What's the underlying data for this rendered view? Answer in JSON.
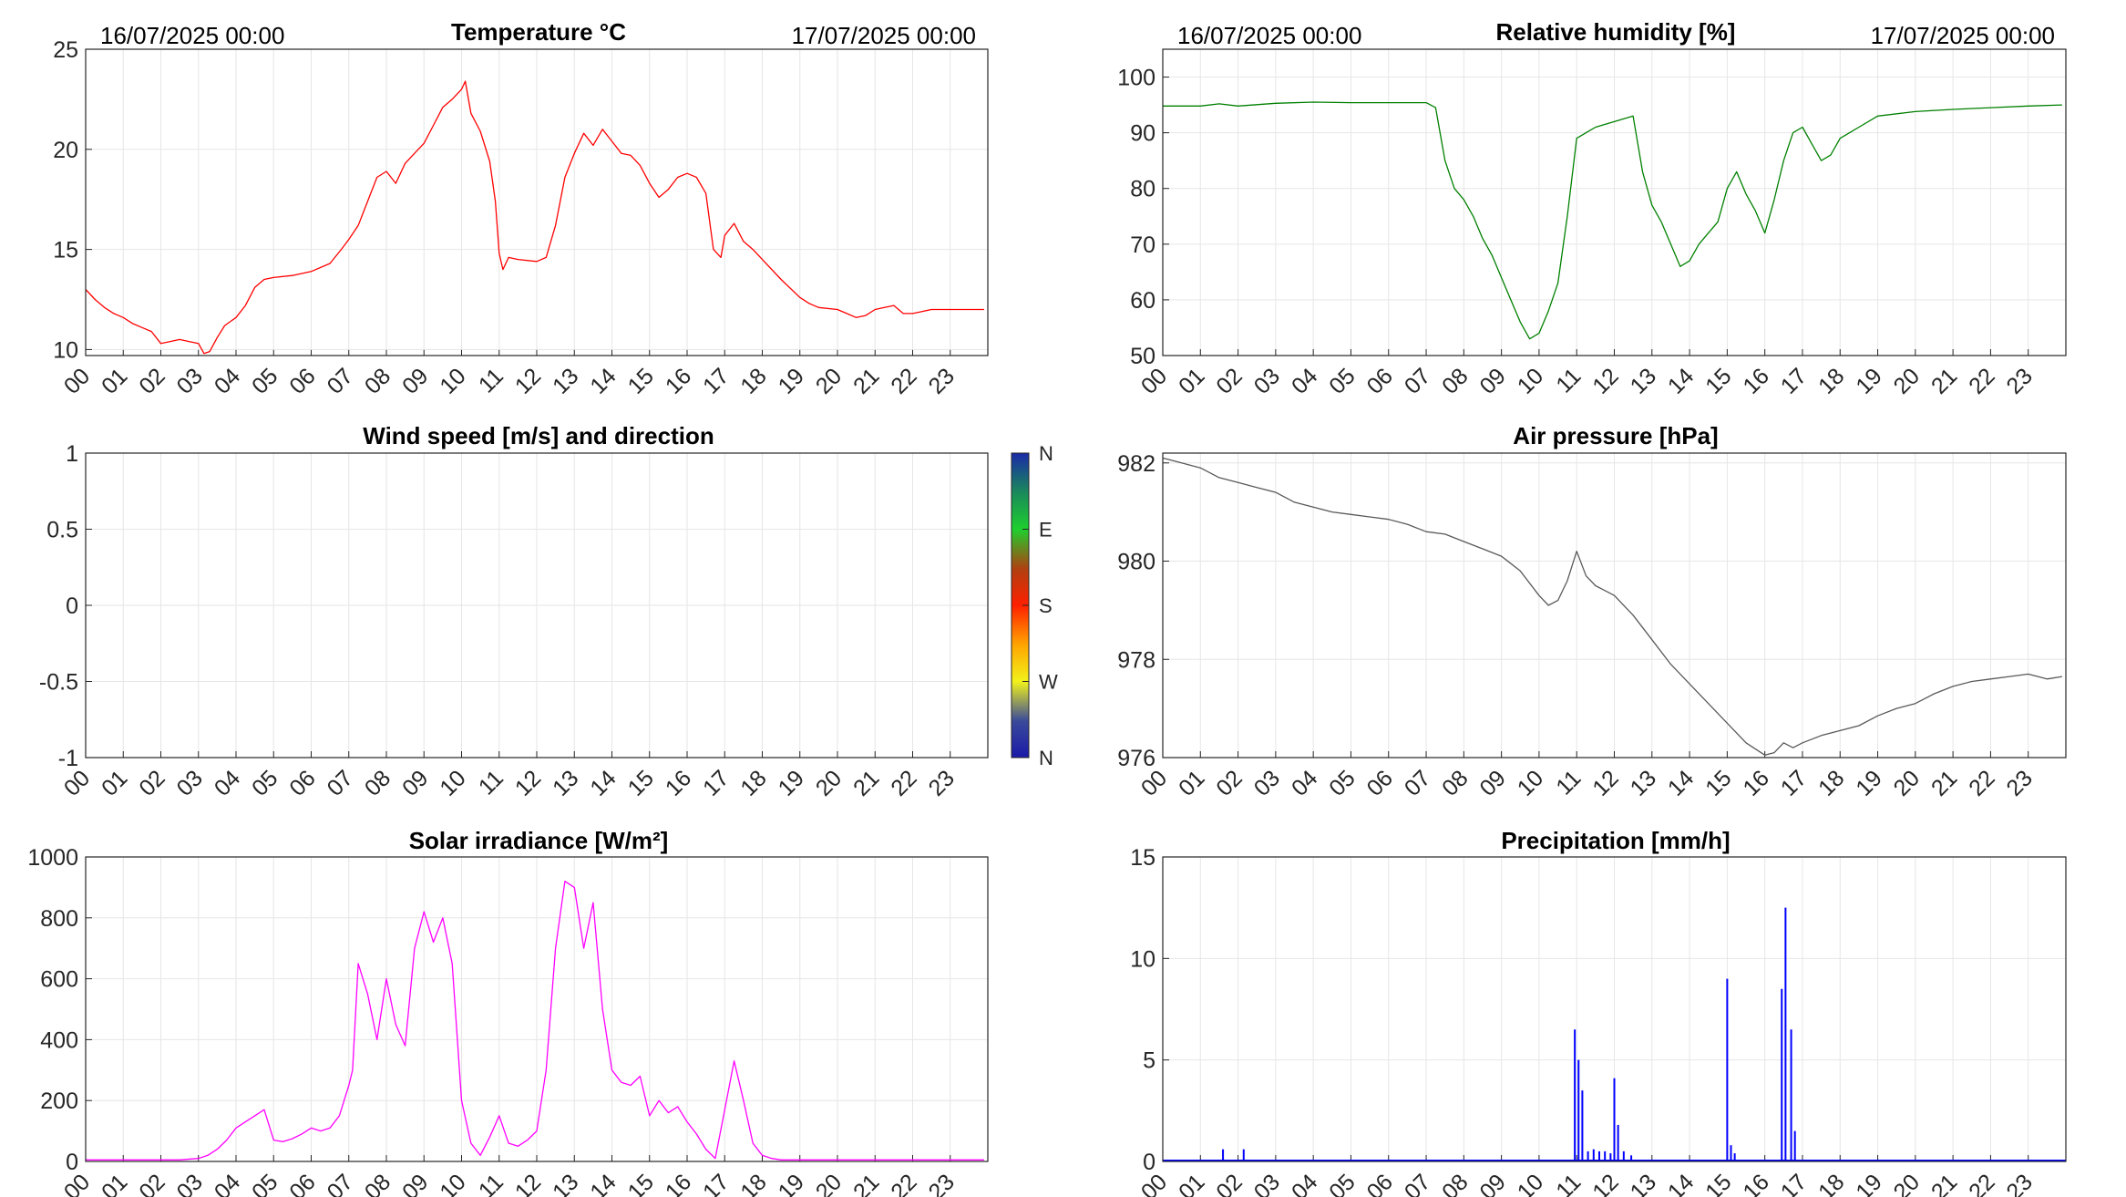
{
  "colors": {
    "temperature": "#ff0000",
    "humidity": "#008000",
    "pressure": "#595959",
    "solar": "#ff00ff",
    "precip": "#0000ff",
    "grid": "#e6e6e6",
    "axis": "#262626"
  },
  "hour_labels": [
    "00",
    "01",
    "02",
    "03",
    "04",
    "05",
    "06",
    "07",
    "08",
    "09",
    "10",
    "11",
    "12",
    "13",
    "14",
    "15",
    "16",
    "17",
    "18",
    "19",
    "20",
    "21",
    "22",
    "23"
  ],
  "date_start": "16/07/2025 00:00",
  "date_end": "17/07/2025 00:00",
  "colorbar_labels": [
    "N",
    "W",
    "S",
    "E",
    "N"
  ],
  "colorbar_label_keys": [
    "N",
    "W",
    "S",
    "E",
    "N2"
  ],
  "chart_data": [
    {
      "id": "temperature",
      "type": "line",
      "title": "Temperature °C",
      "ylim": [
        9.7,
        25
      ],
      "yticks": [
        10,
        15,
        20,
        25
      ],
      "grid": true,
      "x_unit": "hour of day",
      "x": [
        0,
        0.25,
        0.5,
        0.75,
        1,
        1.25,
        1.5,
        1.75,
        2,
        2.25,
        2.5,
        2.75,
        3,
        3.15,
        3.3,
        3.5,
        3.7,
        4,
        4.25,
        4.5,
        4.75,
        5,
        5.5,
        6,
        6.5,
        6.8,
        7,
        7.25,
        7.5,
        7.75,
        8,
        8.25,
        8.5,
        8.75,
        9,
        9.25,
        9.5,
        9.75,
        10,
        10.1,
        10.25,
        10.5,
        10.75,
        10.9,
        11,
        11.1,
        11.25,
        11.5,
        12,
        12.25,
        12.5,
        12.75,
        13,
        13.25,
        13.5,
        13.75,
        14,
        14.25,
        14.5,
        14.75,
        15,
        15.25,
        15.5,
        15.75,
        16,
        16.25,
        16.5,
        16.7,
        16.9,
        17,
        17.25,
        17.5,
        17.75,
        18,
        18.5,
        19,
        19.25,
        19.5,
        20,
        20.25,
        20.5,
        20.75,
        21,
        21.25,
        21.5,
        21.75,
        22,
        22.25,
        22.5,
        23,
        23.5,
        23.9
      ],
      "y": [
        13.0,
        12.5,
        12.1,
        11.8,
        11.6,
        11.3,
        11.1,
        10.9,
        10.3,
        10.4,
        10.5,
        10.4,
        10.3,
        9.8,
        9.9,
        10.6,
        11.2,
        11.6,
        12.2,
        13.1,
        13.5,
        13.6,
        13.7,
        13.9,
        14.3,
        15.0,
        15.5,
        16.2,
        17.4,
        18.6,
        18.9,
        18.3,
        19.3,
        19.8,
        20.3,
        21.2,
        22.1,
        22.5,
        23.0,
        23.4,
        21.8,
        20.9,
        19.4,
        17.4,
        14.8,
        14.0,
        14.6,
        14.5,
        14.4,
        14.6,
        16.2,
        18.6,
        19.8,
        20.8,
        20.2,
        21.0,
        20.4,
        19.8,
        19.7,
        19.2,
        18.3,
        17.6,
        18.0,
        18.6,
        18.8,
        18.6,
        17.8,
        15.0,
        14.6,
        15.7,
        16.3,
        15.4,
        15.0,
        14.5,
        13.5,
        12.6,
        12.3,
        12.1,
        12.0,
        11.8,
        11.6,
        11.7,
        12.0,
        12.1,
        12.2,
        11.8,
        11.8,
        11.9,
        12.0,
        12.0,
        12.0,
        12.0
      ]
    },
    {
      "id": "humidity",
      "type": "line",
      "title": "Relative humidity [%]",
      "ylim": [
        50,
        105
      ],
      "yticks": [
        50,
        60,
        70,
        80,
        90,
        100
      ],
      "grid": true,
      "x_unit": "hour of day",
      "x": [
        0,
        1,
        1.5,
        2,
        3,
        4,
        5,
        6,
        7,
        7.25,
        7.5,
        7.75,
        8,
        8.25,
        8.5,
        8.75,
        9,
        9.25,
        9.5,
        9.75,
        10,
        10.25,
        10.5,
        10.75,
        11,
        11.25,
        11.5,
        12,
        12.5,
        12.75,
        13,
        13.25,
        13.5,
        13.75,
        14,
        14.25,
        14.5,
        14.75,
        15,
        15.25,
        15.5,
        15.75,
        16,
        16.25,
        16.5,
        16.75,
        17,
        17.25,
        17.5,
        17.75,
        18,
        18.5,
        19,
        20,
        21,
        22,
        23,
        23.9
      ],
      "y": [
        94.8,
        94.8,
        95.2,
        94.8,
        95.3,
        95.5,
        95.4,
        95.4,
        95.4,
        94.5,
        85,
        80,
        78,
        75,
        71,
        68,
        64,
        60,
        56,
        53,
        54,
        58,
        63,
        75,
        89,
        90,
        91,
        92,
        93,
        83,
        77,
        74,
        70,
        66,
        67,
        70,
        72,
        74,
        80,
        83,
        79,
        76,
        72,
        78,
        85,
        90,
        91,
        88,
        85,
        86,
        89,
        91,
        93,
        93.8,
        94.2,
        94.5,
        94.8,
        95.0
      ]
    },
    {
      "id": "wind",
      "type": "scatter",
      "title": "Wind speed [m/s] and direction",
      "ylim": [
        -1,
        1
      ],
      "yticks": [
        -1,
        -0.5,
        0,
        0.5,
        1
      ],
      "ytick_labels": [
        "-1",
        "-0.5",
        "0",
        "0.5",
        "1"
      ],
      "grid": true,
      "x_unit": "hour of day",
      "x": [],
      "y": []
    },
    {
      "id": "pressure",
      "type": "line",
      "title": "Air pressure [hPa]",
      "ylim": [
        976,
        982.2
      ],
      "yticks": [
        976,
        978,
        980,
        982
      ],
      "grid": true,
      "x_unit": "hour of day",
      "x": [
        0,
        0.5,
        1,
        1.5,
        2,
        2.5,
        3,
        3.5,
        4,
        4.5,
        5,
        5.5,
        6,
        6.5,
        7,
        7.5,
        8,
        8.5,
        9,
        9.5,
        10,
        10.25,
        10.5,
        10.75,
        11,
        11.25,
        11.5,
        11.75,
        12,
        12.5,
        13,
        13.5,
        14,
        14.5,
        15,
        15.5,
        16,
        16.25,
        16.5,
        16.75,
        17,
        17.5,
        18,
        18.5,
        19,
        19.5,
        20,
        20.5,
        21,
        21.5,
        22,
        22.5,
        23,
        23.5,
        23.9
      ],
      "y": [
        982.1,
        982.0,
        981.9,
        981.7,
        981.6,
        981.5,
        981.4,
        981.2,
        981.1,
        981.0,
        980.95,
        980.9,
        980.85,
        980.75,
        980.6,
        980.55,
        980.4,
        980.25,
        980.1,
        979.8,
        979.3,
        979.1,
        979.2,
        979.6,
        980.2,
        979.7,
        979.5,
        979.4,
        979.3,
        978.9,
        978.4,
        977.9,
        977.5,
        977.1,
        976.7,
        976.3,
        976.05,
        976.1,
        976.3,
        976.2,
        976.3,
        976.45,
        976.55,
        976.65,
        976.85,
        977.0,
        977.1,
        977.3,
        977.45,
        977.55,
        977.6,
        977.65,
        977.7,
        977.6,
        977.65
      ]
    },
    {
      "id": "solar",
      "type": "line",
      "title": "Solar irradiance [W/m²]",
      "ylim": [
        0,
        1000
      ],
      "yticks": [
        0,
        200,
        400,
        600,
        800,
        1000
      ],
      "grid": true,
      "x_unit": "hour of day",
      "x": [
        0,
        1,
        2,
        2.5,
        3,
        3.25,
        3.5,
        3.75,
        4,
        4.25,
        4.5,
        4.75,
        5,
        5.25,
        5.5,
        5.75,
        6,
        6.25,
        6.5,
        6.75,
        7,
        7.1,
        7.25,
        7.5,
        7.75,
        8,
        8.25,
        8.5,
        8.75,
        9,
        9.25,
        9.5,
        9.75,
        10,
        10.25,
        10.5,
        10.75,
        11,
        11.25,
        11.5,
        11.75,
        12,
        12.25,
        12.5,
        12.75,
        13,
        13.25,
        13.5,
        13.75,
        14,
        14.25,
        14.5,
        14.75,
        15,
        15.25,
        15.5,
        15.75,
        16,
        16.25,
        16.5,
        16.75,
        17,
        17.25,
        17.5,
        17.75,
        18,
        18.25,
        18.5,
        19,
        20,
        21,
        22,
        23,
        23.9
      ],
      "y": [
        5,
        5,
        5,
        5,
        10,
        20,
        40,
        70,
        110,
        130,
        150,
        170,
        70,
        65,
        75,
        90,
        110,
        100,
        110,
        150,
        250,
        300,
        650,
        550,
        400,
        600,
        450,
        380,
        700,
        820,
        720,
        800,
        650,
        200,
        60,
        20,
        80,
        150,
        60,
        50,
        70,
        100,
        300,
        700,
        920,
        900,
        700,
        850,
        500,
        300,
        260,
        250,
        280,
        150,
        200,
        160,
        180,
        130,
        90,
        40,
        10,
        170,
        330,
        200,
        60,
        20,
        10,
        5,
        5,
        5,
        5,
        5,
        5,
        5
      ]
    },
    {
      "id": "precip",
      "type": "bar",
      "title": "Precipitation [mm/h]",
      "ylim": [
        0,
        15
      ],
      "yticks": [
        0,
        5,
        10,
        15
      ],
      "grid": true,
      "x_unit": "hour of day",
      "x": [
        1.6,
        2.15,
        10.95,
        11.05,
        11.15,
        11.3,
        11.45,
        11.6,
        11.75,
        11.9,
        12.0,
        12.1,
        12.25,
        12.45,
        15.0,
        15.1,
        15.2,
        16.45,
        16.55,
        16.7,
        16.8
      ],
      "y": [
        0.6,
        0.6,
        6.5,
        5.0,
        3.5,
        0.5,
        0.6,
        0.5,
        0.5,
        0.4,
        4.1,
        1.8,
        0.5,
        0.3,
        9.0,
        0.8,
        0.4,
        8.5,
        12.5,
        6.5,
        1.5
      ]
    }
  ]
}
